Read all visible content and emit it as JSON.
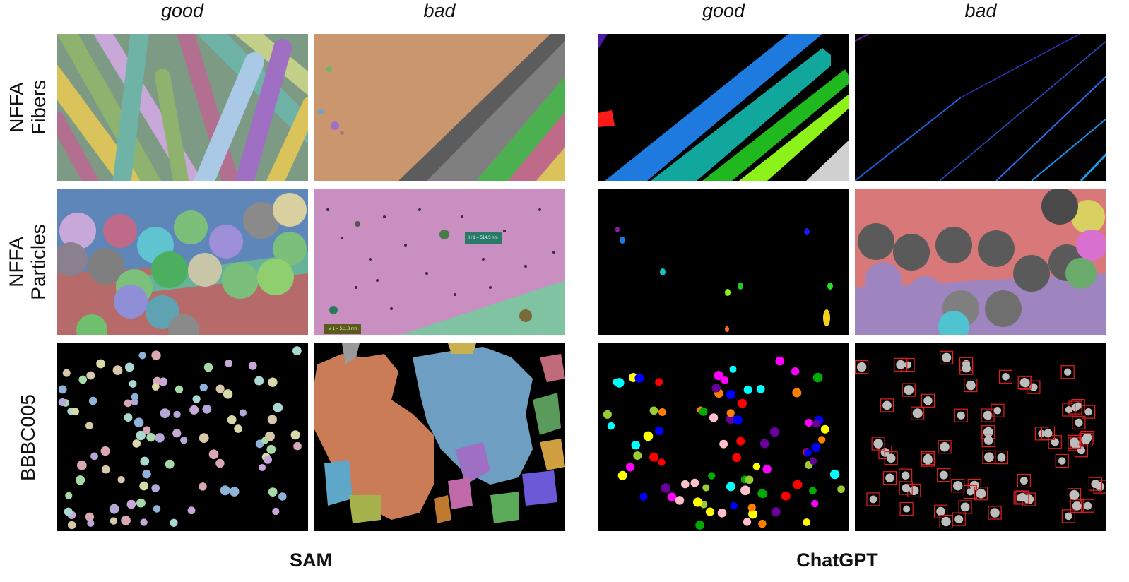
{
  "column_headers": [
    "good",
    "bad",
    "good",
    "bad"
  ],
  "row_labels": [
    {
      "line1": "NFFA",
      "line2": "Fibers"
    },
    {
      "line1": "NFFA",
      "line2": "Particles"
    },
    {
      "line1": "BBBC005",
      "line2": ""
    }
  ],
  "group_labels": {
    "left": "SAM",
    "right": "ChatGPT"
  },
  "panel_texts": {
    "particles_bad_label_1": "H 1 = 514.5 nm",
    "particles_bad_label_2": "V 1 = 511.8 nm"
  },
  "palette": {
    "fiber_colors": [
      "#8fb36f",
      "#c7a8d8",
      "#d9c35a",
      "#6fb3a7",
      "#b36f8f",
      "#a9c9e6",
      "#9e6fc3",
      "#c4d08a"
    ],
    "chatgpt_fiber_colors": [
      "#1f7ae0",
      "#12a79d",
      "#20b81f",
      "#8cf21a",
      "#d0d0d0"
    ],
    "chatgpt_cell_colors": [
      "#ffff00",
      "#ff0000",
      "#00ffff",
      "#ff00ff",
      "#0000ff",
      "#00aa00",
      "#ff8000",
      "#660099",
      "#ffc0cb",
      "#99cc33"
    ]
  }
}
